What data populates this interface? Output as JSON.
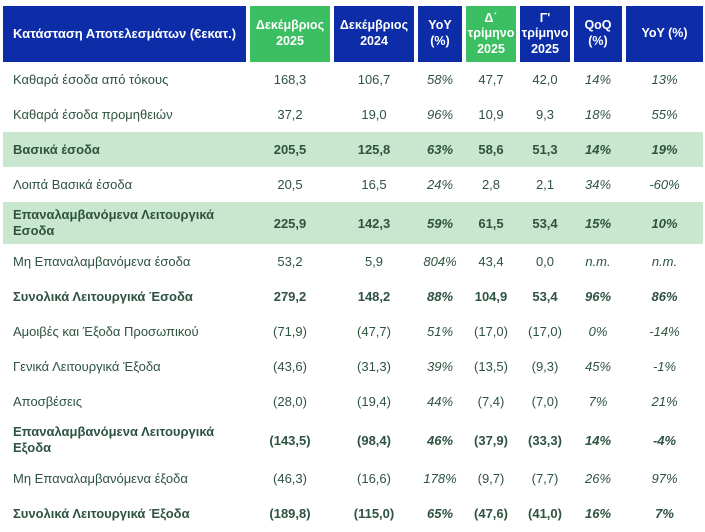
{
  "colors": {
    "header_blue": "#0D2DA8",
    "header_green": "#3CBE63",
    "row_highlight_green": "#C9E7CF",
    "text_dark_green": "#2E5340",
    "header_text": "#FFFFFF"
  },
  "table": {
    "title": "Κατάσταση Αποτελεσμάτων (€εκατ.)",
    "columns": [
      {
        "label": "Δεκέμβριος 2025",
        "highlight": true
      },
      {
        "label": "Δεκέμβριος 2024",
        "highlight": false
      },
      {
        "label": "YoY (%)",
        "highlight": false
      },
      {
        "label": "Δ΄ τρίμηνο 2025",
        "highlight": true
      },
      {
        "label": "Γ' τρίμηνο 2025",
        "highlight": false
      },
      {
        "label": "QoQ (%)",
        "highlight": false
      },
      {
        "label": "YoY (%)",
        "highlight": false
      }
    ],
    "rows": [
      {
        "label": "Καθαρά έσοδα από τόκους",
        "values": [
          "168,3",
          "106,7",
          "58%",
          "47,7",
          "42,0",
          "14%",
          "13%"
        ],
        "bold": false,
        "highlight": false,
        "tall": false
      },
      {
        "label": "Καθαρά έσοδα προμηθειών",
        "values": [
          "37,2",
          "19,0",
          "96%",
          "10,9",
          "9,3",
          "18%",
          "55%"
        ],
        "bold": false,
        "highlight": false,
        "tall": false
      },
      {
        "label": "Βασικά έσοδα",
        "values": [
          "205,5",
          "125,8",
          "63%",
          "58,6",
          "51,3",
          "14%",
          "19%"
        ],
        "bold": true,
        "highlight": true,
        "tall": false
      },
      {
        "label": "Λοιπά Βασικά έσοδα",
        "values": [
          "20,5",
          "16,5",
          "24%",
          "2,8",
          "2,1",
          "34%",
          "-60%"
        ],
        "bold": false,
        "highlight": false,
        "tall": false
      },
      {
        "label": "Επαναλαμβανόμενα Λειτουργικά Εσοδα",
        "values": [
          "225,9",
          "142,3",
          "59%",
          "61,5",
          "53,4",
          "15%",
          "10%"
        ],
        "bold": true,
        "highlight": true,
        "tall": true
      },
      {
        "label": "Μη Επαναλαμβανόμενα έσοδα",
        "values": [
          "53,2",
          "5,9",
          "804%",
          "43,4",
          "0,0",
          "n.m.",
          "n.m."
        ],
        "bold": false,
        "highlight": false,
        "tall": false
      },
      {
        "label": "Συνολικά Λειτουργικά Έσοδα",
        "values": [
          "279,2",
          "148,2",
          "88%",
          "104,9",
          "53,4",
          "96%",
          "86%"
        ],
        "bold": true,
        "highlight": false,
        "tall": false
      },
      {
        "label": "Αμοιβές και Έξοδα Προσωπικού",
        "values": [
          "(71,9)",
          "(47,7)",
          "51%",
          "(17,0)",
          "(17,0)",
          "0%",
          "-14%"
        ],
        "bold": false,
        "highlight": false,
        "tall": false
      },
      {
        "label": "Γενικά Λειτουργικά Έξοδα",
        "values": [
          "(43,6)",
          "(31,3)",
          "39%",
          "(13,5)",
          "(9,3)",
          "45%",
          "-1%"
        ],
        "bold": false,
        "highlight": false,
        "tall": false
      },
      {
        "label": "Αποσβέσεις",
        "values": [
          "(28,0)",
          "(19,4)",
          "44%",
          "(7,4)",
          "(7,0)",
          "7%",
          "21%"
        ],
        "bold": false,
        "highlight": false,
        "tall": false
      },
      {
        "label": "Επαναλαμβανόμενα Λειτουργικά Εξοδα",
        "values": [
          "(143,5)",
          "(98,4)",
          "46%",
          "(37,9)",
          "(33,3)",
          "14%",
          "-4%"
        ],
        "bold": true,
        "highlight": false,
        "tall": true
      },
      {
        "label": "Μη Επαναλαμβανόμενα έξοδα",
        "values": [
          "(46,3)",
          "(16,6)",
          "178%",
          "(9,7)",
          "(7,7)",
          "26%",
          "97%"
        ],
        "bold": false,
        "highlight": false,
        "tall": false
      },
      {
        "label": "Συνολικά Λειτουργικά Έξοδα",
        "values": [
          "(189,8)",
          "(115,0)",
          "65%",
          "(47,6)",
          "(41,0)",
          "16%",
          "7%"
        ],
        "bold": true,
        "highlight": false,
        "tall": false
      }
    ]
  }
}
